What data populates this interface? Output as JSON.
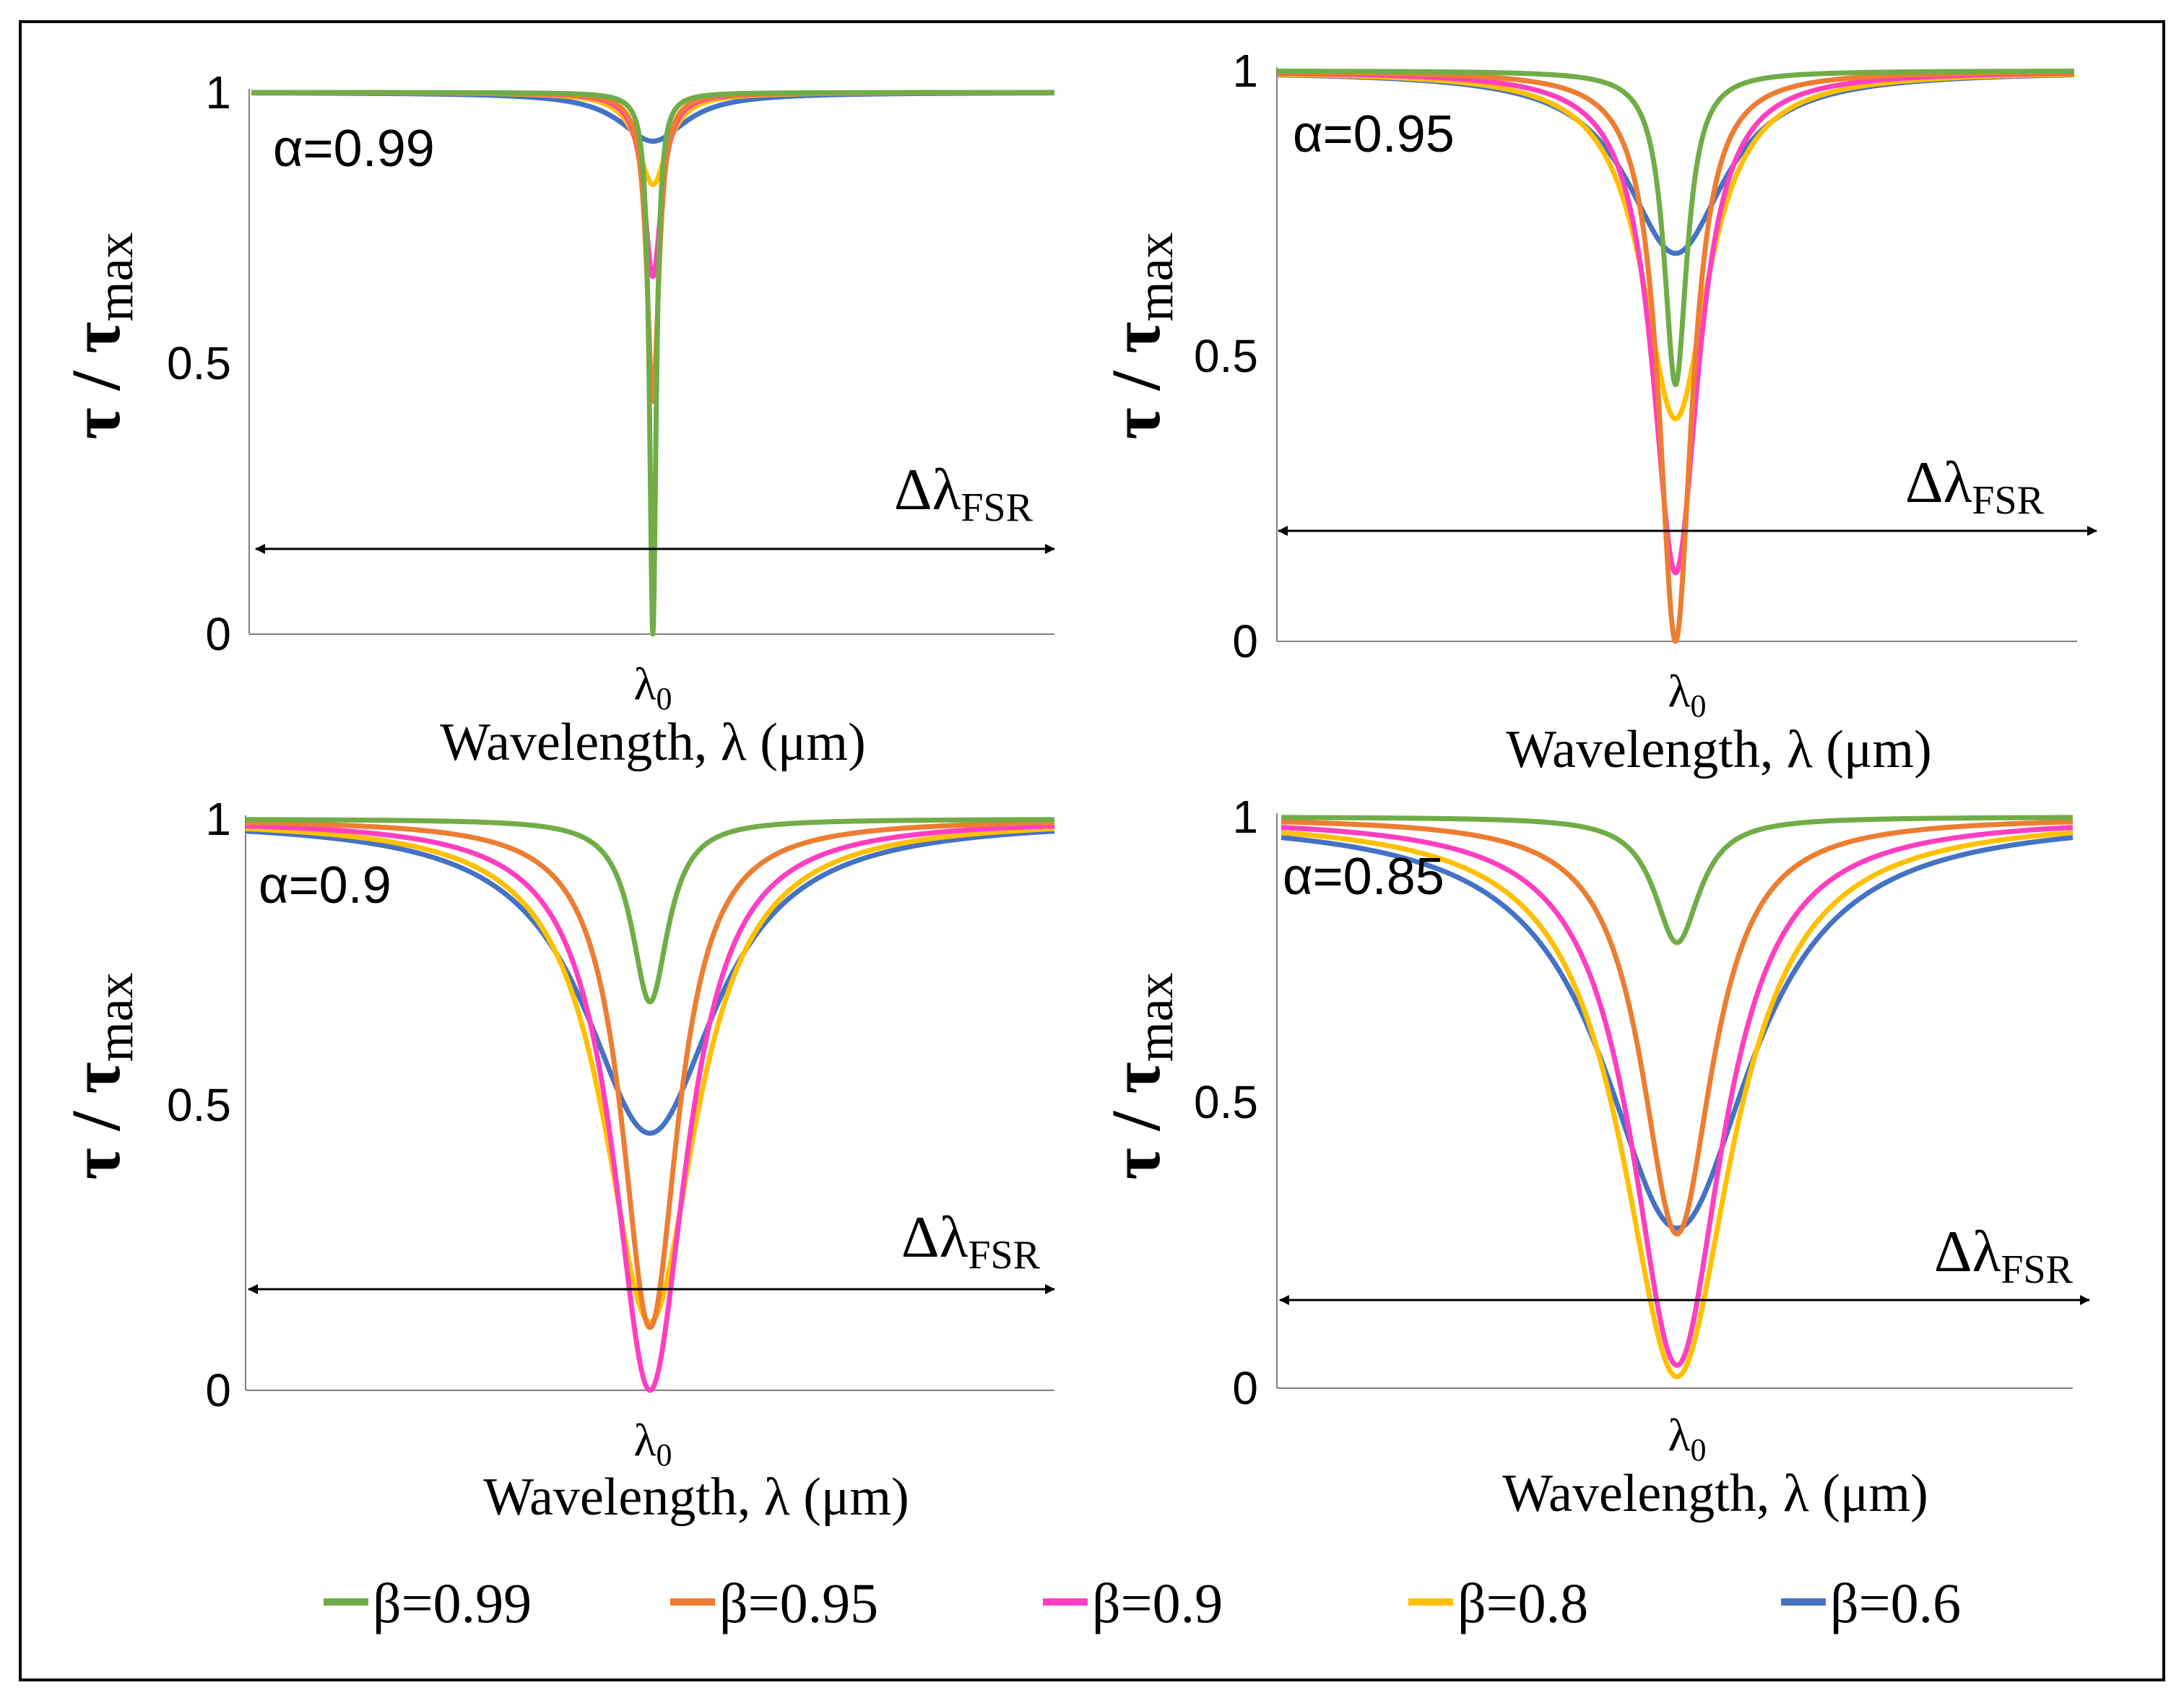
{
  "figure": {
    "description_free": true
  },
  "colors": {
    "b099": "#70ad47",
    "b095": "#ed7d31",
    "b09": "#ff3fbf",
    "b08": "#ffc000",
    "b06": "#4472c4"
  },
  "legend": [
    {
      "label": "β=0.99",
      "color": "#70ad47"
    },
    {
      "label": "β=0.95",
      "color": "#ed7d31"
    },
    {
      "label": "β=0.9",
      "color": "#ff3fbf"
    },
    {
      "label": "β=0.8",
      "color": "#ffc000"
    },
    {
      "label": "β=0.6",
      "color": "#4472c4"
    }
  ],
  "chart_data": [
    {
      "type": "line",
      "panel": "top-left",
      "annotation": "α=0.99",
      "ylabel_main": "τ / τ",
      "ylabel_sub": "max",
      "xlabel": "Wavelength, λ (μm)",
      "xtick_main": "λ",
      "xtick_sub": "0",
      "fsr_main": "Δλ",
      "fsr_sub": "FSR",
      "yticks": [
        "1",
        "0.5",
        "0"
      ],
      "ylim": [
        0,
        1
      ],
      "xlim": [
        -1,
        1
      ],
      "series": [
        {
          "name": "β=0.99",
          "min": 0.0,
          "width": 0.01
        },
        {
          "name": "β=0.95",
          "min": 0.43,
          "width": 0.018
        },
        {
          "name": "β=0.9",
          "min": 0.66,
          "width": 0.026
        },
        {
          "name": "β=0.8",
          "min": 0.83,
          "width": 0.045
        },
        {
          "name": "β=0.6",
          "min": 0.91,
          "width": 0.1
        }
      ]
    },
    {
      "type": "line",
      "panel": "top-right",
      "annotation": "α=0.95",
      "ylabel_main": "τ / τ",
      "ylabel_sub": "max",
      "xlabel": "Wavelength, λ (μm)",
      "xtick_main": "λ",
      "xtick_sub": "0",
      "fsr_main": "Δλ",
      "fsr_sub": "FSR",
      "yticks": [
        "1",
        "0.5",
        "0"
      ],
      "ylim": [
        0,
        1
      ],
      "xlim": [
        -1,
        1
      ],
      "series": [
        {
          "name": "β=0.99",
          "min": 0.45,
          "width": 0.035
        },
        {
          "name": "β=0.95",
          "min": 0.0,
          "width": 0.05
        },
        {
          "name": "β=0.9",
          "min": 0.12,
          "width": 0.07
        },
        {
          "name": "β=0.8",
          "min": 0.39,
          "width": 0.1
        },
        {
          "name": "β=0.6",
          "min": 0.68,
          "width": 0.15
        }
      ]
    },
    {
      "type": "line",
      "panel": "bottom-left",
      "annotation": "α=0.9",
      "ylabel_main": "τ / τ",
      "ylabel_sub": "max",
      "xlabel": "Wavelength, λ (μm)",
      "xtick_main": "λ",
      "xtick_sub": "0",
      "fsr_main": "Δλ",
      "fsr_sub": "FSR",
      "yticks": [
        "1",
        "0.5",
        "0"
      ],
      "ylim": [
        0,
        1
      ],
      "xlim": [
        -1,
        1
      ],
      "series": [
        {
          "name": "β=0.99",
          "min": 0.68,
          "width": 0.055
        },
        {
          "name": "β=0.95",
          "min": 0.11,
          "width": 0.085
        },
        {
          "name": "β=0.9",
          "min": 0.0,
          "width": 0.11
        },
        {
          "name": "β=0.8",
          "min": 0.12,
          "width": 0.14
        },
        {
          "name": "β=0.6",
          "min": 0.45,
          "width": 0.2
        }
      ]
    },
    {
      "type": "line",
      "panel": "bottom-right",
      "annotation": "α=0.85",
      "ylabel_main": "τ / τ",
      "ylabel_sub": "max",
      "xlabel": "Wavelength, λ (μm)",
      "xtick_main": "λ",
      "xtick_sub": "0",
      "fsr_main": "Δλ",
      "fsr_sub": "FSR",
      "yticks": [
        "1",
        "0.5",
        "0"
      ],
      "ylim": [
        0,
        1
      ],
      "xlim": [
        -1,
        1
      ],
      "series": [
        {
          "name": "β=0.99",
          "min": 0.78,
          "width": 0.07
        },
        {
          "name": "β=0.95",
          "min": 0.27,
          "width": 0.11
        },
        {
          "name": "β=0.9",
          "min": 0.04,
          "width": 0.14
        },
        {
          "name": "β=0.8",
          "min": 0.02,
          "width": 0.17
        },
        {
          "name": "β=0.6",
          "min": 0.28,
          "width": 0.23
        }
      ]
    }
  ]
}
